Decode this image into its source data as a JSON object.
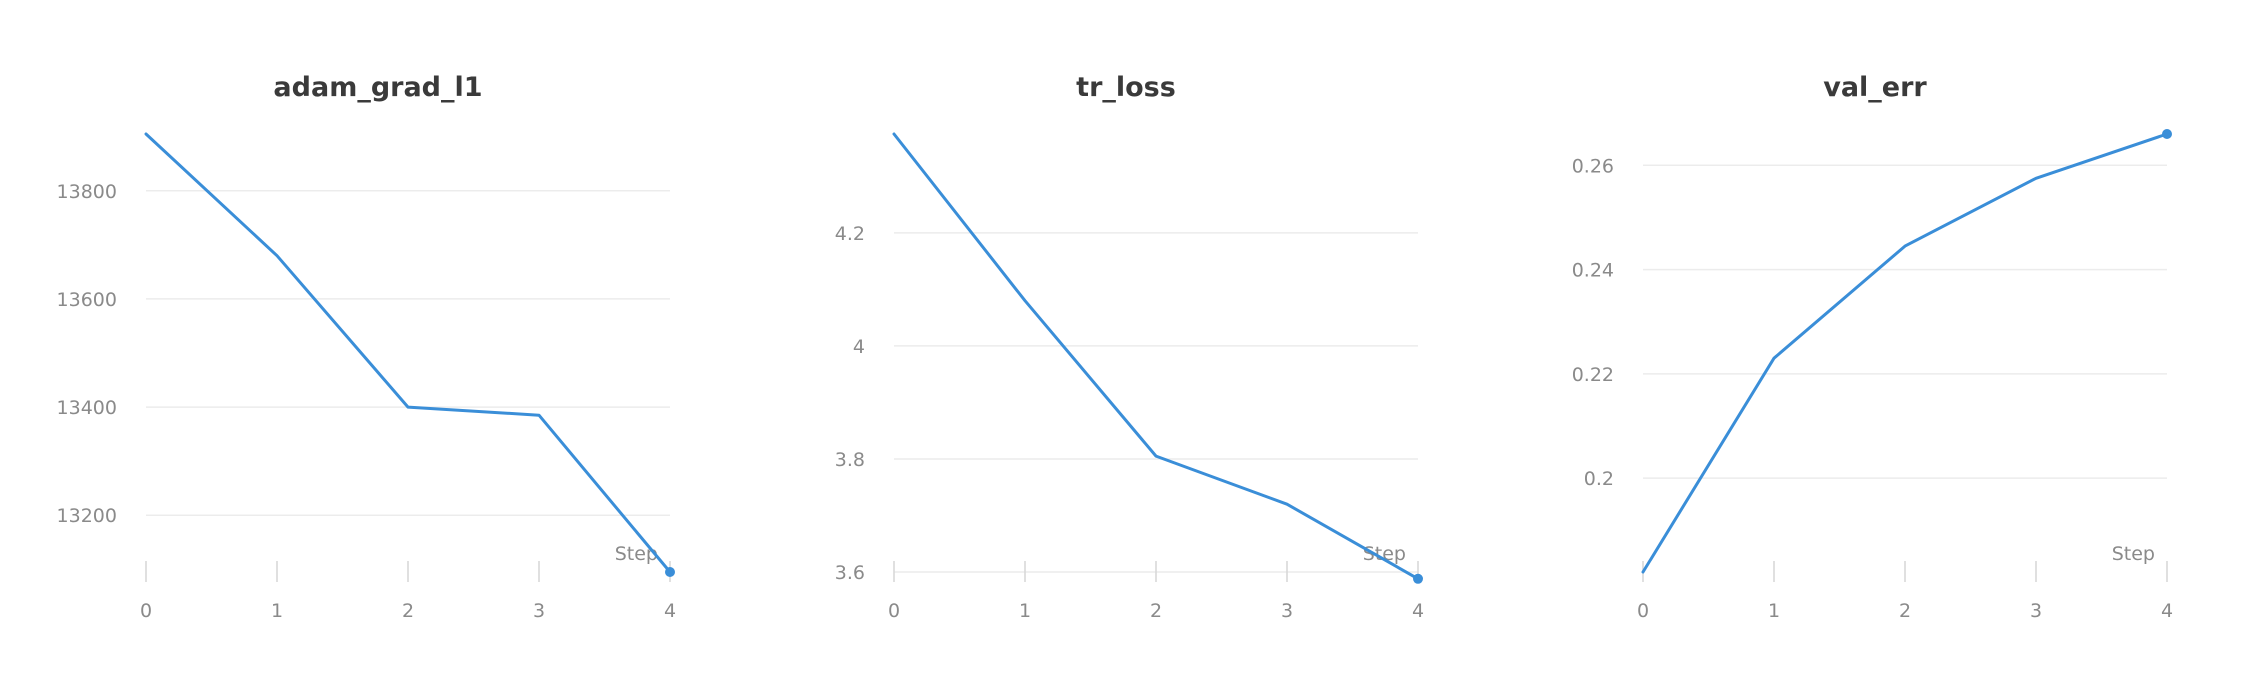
{
  "colors": {
    "series": "#3a8ed8"
  },
  "chart_data": [
    {
      "type": "line",
      "title": "adam_grad_l1",
      "xlabel": "Step",
      "ylabel": "",
      "x": [
        0,
        1,
        2,
        3,
        4
      ],
      "series": [
        {
          "values": [
            13905,
            13680,
            13400,
            13385,
            13095
          ]
        }
      ],
      "xlim": [
        0,
        4
      ],
      "ylim": [
        13095,
        13905
      ],
      "x_ticks": [
        "0",
        "1",
        "2",
        "3",
        "4"
      ],
      "y_ticks": [
        13200,
        13400,
        13600,
        13800
      ],
      "y_tick_labels": [
        "13200",
        "13400",
        "13600",
        "13800"
      ],
      "grid": true,
      "end_marker": true
    },
    {
      "type": "line",
      "title": "tr_loss",
      "xlabel": "Step",
      "ylabel": "",
      "x": [
        0,
        1,
        2,
        3,
        4
      ],
      "series": [
        {
          "values": [
            4.375,
            4.08,
            3.805,
            3.72,
            3.588
          ]
        }
      ],
      "xlim": [
        0,
        4
      ],
      "ylim": [
        3.6,
        4.375
      ],
      "x_ticks": [
        "0",
        "1",
        "2",
        "3",
        "4"
      ],
      "y_ticks": [
        3.6,
        3.8,
        4.0,
        4.2
      ],
      "y_tick_labels": [
        "3.6",
        "3.8",
        "4",
        "4.2"
      ],
      "grid": true,
      "end_marker": true
    },
    {
      "type": "line",
      "title": "val_err",
      "xlabel": "Step",
      "ylabel": "",
      "x": [
        0,
        1,
        2,
        3,
        4
      ],
      "series": [
        {
          "values": [
            0.182,
            0.223,
            0.2445,
            0.2575,
            0.266
          ]
        }
      ],
      "xlim": [
        0,
        4
      ],
      "ylim": [
        0.182,
        0.266
      ],
      "x_ticks": [
        "0",
        "1",
        "2",
        "3",
        "4"
      ],
      "y_ticks": [
        0.2,
        0.22,
        0.24,
        0.26
      ],
      "y_tick_labels": [
        "0.2",
        "0.22",
        "0.24",
        "0.26"
      ],
      "grid": true,
      "end_marker": true
    }
  ]
}
